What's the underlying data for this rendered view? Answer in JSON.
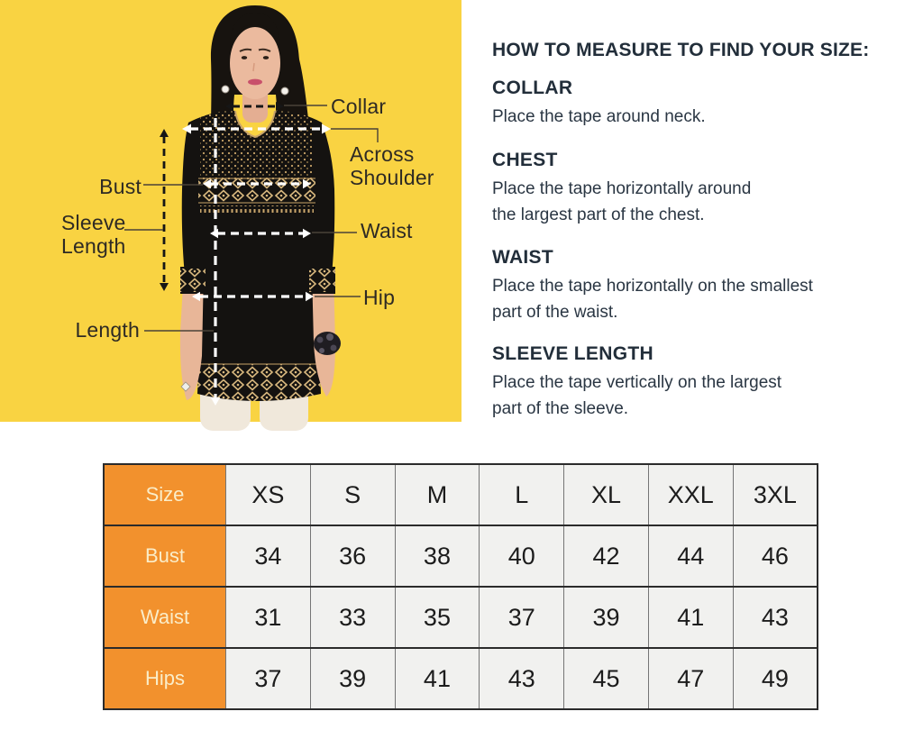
{
  "figure": {
    "labels": {
      "collar": "Collar",
      "across_shoulder": "Across\nShoulder",
      "bust": "Bust",
      "sleeve_length": "Sleeve\nLength",
      "waist": "Waist",
      "hip": "Hip",
      "length": "Length"
    },
    "colors": {
      "background_yellow": "#F9D342",
      "garment_black": "#141210",
      "print_gold": "#C9A468",
      "label_text": "#2E2A24",
      "measure_line_white": "#FFFFFF",
      "measure_line_black": "#161616"
    }
  },
  "instructions": {
    "heading": "HOW TO MEASURE TO FIND YOUR SIZE:",
    "sections": [
      {
        "title": "COLLAR",
        "text": "Place the tape around neck."
      },
      {
        "title": "CHEST",
        "text": "Place the tape horizontally around\nthe largest part of the chest."
      },
      {
        "title": "WAIST",
        "text": "Place the tape horizontally on the smallest\npart of the waist."
      },
      {
        "title": "SLEEVE LENGTH",
        "text": "Place the tape vertically on the largest\npart of the sleeve."
      }
    ]
  },
  "size_table": {
    "colors": {
      "header_orange": "#F2912D",
      "header_text": "#FAEDC9",
      "cell_background": "#F1F1EF",
      "cell_text": "#1C1C1C",
      "border": "#2B2B2B"
    },
    "rows": [
      {
        "label": "Size",
        "values": [
          "XS",
          "S",
          "M",
          "L",
          "XL",
          "XXL",
          "3XL"
        ]
      },
      {
        "label": "Bust",
        "values": [
          "34",
          "36",
          "38",
          "40",
          "42",
          "44",
          "46"
        ]
      },
      {
        "label": "Waist",
        "values": [
          "31",
          "33",
          "35",
          "37",
          "39",
          "41",
          "43"
        ]
      },
      {
        "label": "Hips",
        "values": [
          "37",
          "39",
          "41",
          "43",
          "45",
          "47",
          "49"
        ]
      }
    ]
  }
}
